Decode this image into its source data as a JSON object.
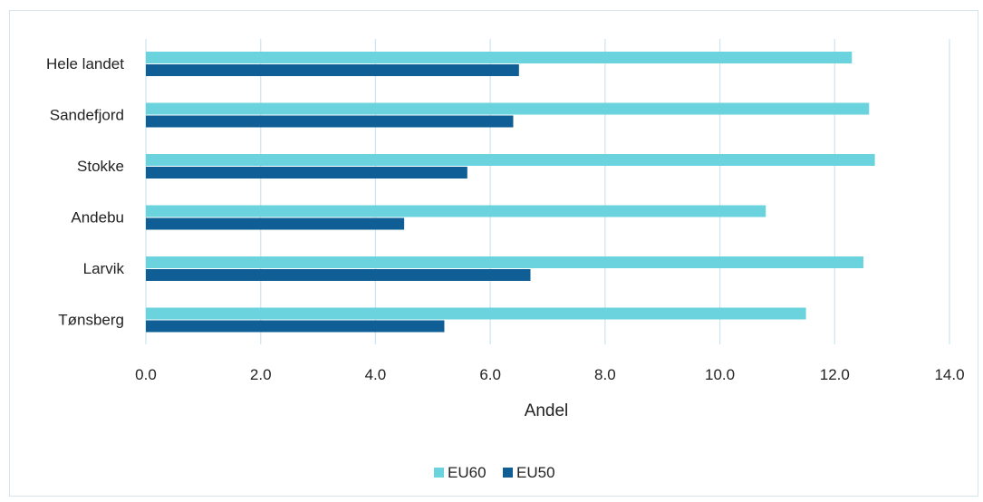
{
  "chart_data": {
    "type": "bar",
    "orientation": "horizontal",
    "categories": [
      "Hele landet",
      "Sandefjord",
      "Stokke",
      "Andebu",
      "Larvik",
      "Tønsberg"
    ],
    "series": [
      {
        "name": "EU60",
        "color": "#6ad3dd",
        "values": [
          12.3,
          12.6,
          12.7,
          10.8,
          12.5,
          11.5
        ]
      },
      {
        "name": "EU50",
        "color": "#0f5f96",
        "values": [
          6.5,
          6.4,
          5.6,
          4.5,
          6.7,
          5.2
        ]
      }
    ],
    "xlabel": "Andel",
    "ylabel": "",
    "title": "",
    "xlim": [
      0,
      14
    ],
    "xticks": [
      "0.0",
      "2.0",
      "4.0",
      "6.0",
      "8.0",
      "10.0",
      "12.0",
      "14.0"
    ],
    "grid": "vertical",
    "legend_position": "bottom"
  }
}
